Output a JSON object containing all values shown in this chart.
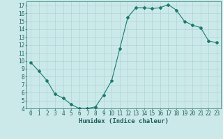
{
  "xlabel": "Humidex (Indice chaleur)",
  "ylabel": "",
  "x_values": [
    0,
    1,
    2,
    3,
    4,
    5,
    6,
    7,
    8,
    9,
    10,
    11,
    12,
    13,
    14,
    15,
    16,
    17,
    18,
    19,
    20,
    21,
    22,
    23
  ],
  "y_values": [
    9.8,
    8.7,
    7.5,
    5.8,
    5.3,
    4.5,
    4.0,
    4.0,
    4.2,
    5.7,
    7.5,
    11.5,
    15.5,
    16.7,
    16.7,
    16.6,
    16.7,
    17.1,
    16.4,
    15.0,
    14.5,
    14.2,
    12.5,
    12.3
  ],
  "line_color": "#1a7a6e",
  "marker": "D",
  "marker_size": 2.0,
  "bg_color": "#cce9e9",
  "grid_color": "#afd4d4",
  "ylim": [
    4,
    17.5
  ],
  "xlim": [
    -0.5,
    23.5
  ],
  "yticks": [
    4,
    5,
    6,
    7,
    8,
    9,
    10,
    11,
    12,
    13,
    14,
    15,
    16,
    17
  ],
  "xticks": [
    0,
    1,
    2,
    3,
    4,
    5,
    6,
    7,
    8,
    9,
    10,
    11,
    12,
    13,
    14,
    15,
    16,
    17,
    18,
    19,
    20,
    21,
    22,
    23
  ],
  "tick_color": "#1a6e64",
  "label_color": "#1a5f5a",
  "font_size": 5.5,
  "xlabel_font_size": 6.5,
  "linewidth": 0.8
}
